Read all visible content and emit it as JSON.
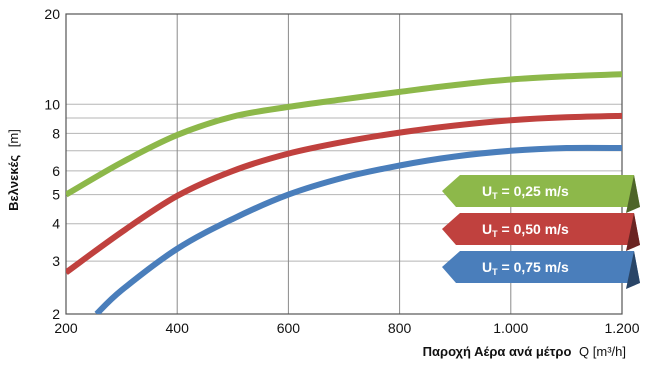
{
  "chart_data": {
    "type": "line",
    "title": "",
    "xlabel_bold": "Παροχή Αέρα ανά μέτρο",
    "xlabel_rest": "Q [m³/h]",
    "ylabel_bold": "Βελνεκές",
    "ylabel_rest": "[m]",
    "xlim": [
      200,
      1200
    ],
    "ylim": [
      2,
      20
    ],
    "yscale": "log",
    "grid": true,
    "legend_position": "right",
    "x_ticks": [
      200,
      400,
      600,
      800,
      1000,
      1200
    ],
    "x_tick_labels": [
      "200",
      "400",
      "600",
      "800",
      "1.000",
      "1.200"
    ],
    "y_ticks": [
      2,
      3,
      4,
      5,
      6,
      8,
      10,
      20
    ],
    "y_tick_labels": [
      "2",
      "3",
      "4",
      "5",
      "6",
      "8",
      "10",
      "20"
    ],
    "series": [
      {
        "name": "U_T = 0,25 m/s",
        "legend_main": "U",
        "legend_sub": "T",
        "legend_value": " = 0,25 m/s",
        "color": "#8db84a",
        "x": [
          200,
          300,
          400,
          500,
          600,
          700,
          800,
          900,
          1000,
          1100,
          1200
        ],
        "y": [
          5.0,
          6.4,
          7.9,
          9.1,
          9.8,
          10.4,
          11.0,
          11.6,
          12.1,
          12.4,
          12.6
        ]
      },
      {
        "name": "U_T = 0,50 m/s",
        "legend_main": "U",
        "legend_sub": "T",
        "legend_value": " = 0,50 m/s",
        "color": "#c0413e",
        "x": [
          200,
          300,
          400,
          500,
          600,
          700,
          800,
          900,
          1000,
          1100,
          1200
        ],
        "y": [
          2.75,
          3.75,
          4.95,
          6.0,
          6.85,
          7.5,
          8.05,
          8.5,
          8.85,
          9.05,
          9.15
        ]
      },
      {
        "name": "U_T = 0,75 m/s",
        "legend_main": "U",
        "legend_sub": "T",
        "legend_value": " = 0,75 m/s",
        "color": "#4a7ebb",
        "x": [
          255,
          300,
          400,
          500,
          600,
          700,
          800,
          900,
          1000,
          1100,
          1200
        ],
        "y": [
          2.0,
          2.4,
          3.3,
          4.15,
          5.0,
          5.7,
          6.25,
          6.7,
          7.0,
          7.15,
          7.15
        ]
      }
    ]
  }
}
